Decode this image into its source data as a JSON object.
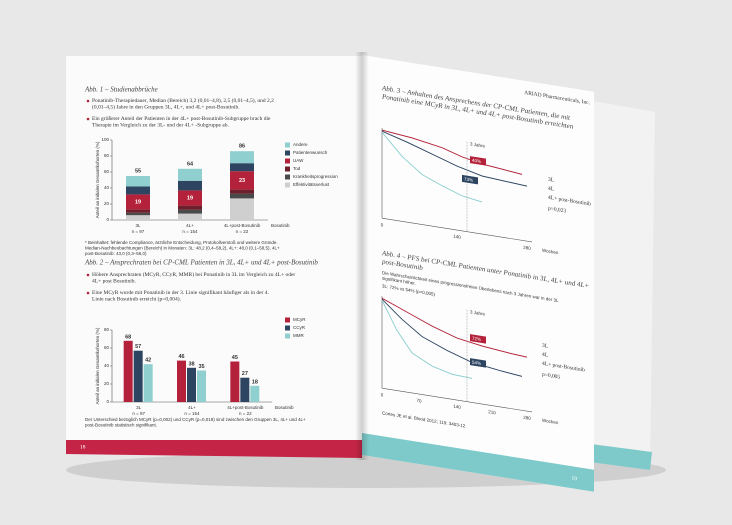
{
  "left_page": {
    "page_number": "18",
    "abb1": {
      "title": "Abb. 1 – Studienabbrüche",
      "bullets": [
        "Ponatinib-Therapiedauer, Median (Bereich) 3,2 (0,01–4,8), 2,5 (0,01–4,5), und 2,2 (0,01–4,5) Jahre in den Gruppen 3L, 4L+, und 4L+ post-Bosutinib.",
        "Ein größerer Anteil der Patienten in der 4L+ post-Bosutinib-Subgruppe brach die Therapie im Vergleich zu der 3L- und der 4L+ -Subgruppe ab."
      ],
      "chart": {
        "type": "stacked_bar",
        "y_label": "Anteil an initialen Gesamtkohorten (%)",
        "x_label": "Bosutinib",
        "categories": [
          [
            "3L",
            "n = 97"
          ],
          [
            "4L+",
            "n = 154"
          ],
          [
            "4L+post-Bosutinib",
            "n = 22"
          ]
        ],
        "totals": [
          55,
          64,
          86
        ],
        "ylim": [
          0,
          100
        ],
        "yticks": [
          0,
          20,
          40,
          60,
          80,
          100
        ],
        "series": [
          {
            "name": "Andere",
            "color": "#8fcfcf",
            "values": [
              13,
              15,
              15
            ]
          },
          {
            "name": "Patientenwunsch",
            "color": "#2d4561",
            "values": [
              10,
              12,
              10
            ]
          },
          {
            "name": "UAW",
            "color": "#b3223a",
            "values": [
              19,
              19,
              23
            ]
          },
          {
            "name": "Tod",
            "color": "#6d1f2c",
            "values": [
              4,
              5,
              5
            ]
          },
          {
            "name": "Krankheitsprogression",
            "color": "#4a4a4a",
            "values": [
              3,
              5,
              6
            ]
          },
          {
            "name": "Effektivitätsverlust",
            "color": "#cfcfcf",
            "values": [
              6,
              8,
              27
            ]
          }
        ]
      },
      "footnote": "* Beinhaltet: fehlende Compliance, ärztliche Entscheidung, Protokollverstoß und weitere Gründe. Median-Nachbeobachtungen (Bereich) in Monaten: 3L: 48,2 (0,4–58,2), 4L+: 48,0 (0,1–58,5), 4L+ post-Bosutinib: 43,0 (0,3–56,0)"
    },
    "abb2": {
      "title": "Abb. 2 – Ansprechraten bei CP-CML Patienten in 3L, 4L+ und 4L+ post-Bosutinib",
      "bullets": [
        "Höhere Ansprechraten (MCyR, CCyR, MMR) bei Ponatinib in 3L im Vergleich zu 4L+ oder 4L+ post Bosutinib.",
        "Eine MCyR wurde mit Ponatinib in der 3. Linie signifikant häufiger als in der 4. Linie nach Bosutinib erreicht (p=0,004)."
      ],
      "chart": {
        "type": "bar",
        "y_label": "Anteil an initialen Gesamtkohorten (%)",
        "x_label": "Bosutinib",
        "categories": [
          [
            "3L",
            "n = 97"
          ],
          [
            "4L+",
            "n = 154"
          ],
          [
            "4L+post-Bosutinib",
            "n = 22"
          ]
        ],
        "ylim": [
          0,
          80
        ],
        "yticks": [
          0,
          20,
          40,
          60,
          80
        ],
        "series": [
          {
            "name": "MCyR",
            "color": "#b3223a",
            "values": [
              68,
              46,
              45
            ]
          },
          {
            "name": "CCyR",
            "color": "#2d4561",
            "values": [
              57,
              38,
              27
            ]
          },
          {
            "name": "MMR",
            "color": "#8fcfcf",
            "values": [
              42,
              35,
              18
            ]
          }
        ]
      },
      "footnote": "Der Unterschied bezüglich MCyR (p=0,002) und CCyR (p=0,019) sind zwischen den Gruppen 3L, 4L+ und 4L+ post-Bosutinib statistisch signifikant."
    }
  },
  "right_page": {
    "header": "ARIAD Pharmaceuticals, Inc.",
    "page_number": "19",
    "abb3": {
      "title": "Abb. 3 – Anhalten des Ansprechens der CP-CML Patienten, die mit Ponatinib eine MCyR in 3L, 4L+ und 4L+ post-Bosutinib erreichten",
      "legend": [
        "3L",
        "4L",
        "4L+ post-Bosutinib"
      ],
      "p_value": "p=0,023",
      "callouts": [
        "3 Jahre",
        "40%",
        "73%"
      ],
      "x_ticks": [
        "0",
        "140",
        "280"
      ],
      "x_label": "Wochen"
    },
    "abb4": {
      "title": "Abb. 4 – PFS bei CP-CML Patienten unter Ponatinib in 3L, 4L+ und 4L+ post-Bosutinib",
      "bullets": [
        "Die Wahrscheinlichkeit eines progressionsfreien Überlebens nach 3 Jahren war in der 3L signifikant höher.",
        "3L: 72% vs 54% (p=0,005)"
      ],
      "legend": [
        "3L",
        "4L",
        "4L+ post-Bosutinib"
      ],
      "p_value": "p=0,005",
      "callouts": [
        "3 Jahre",
        "72%",
        "54%"
      ],
      "x_ticks": [
        "0",
        "70",
        "140",
        "210",
        "280"
      ],
      "x_label": "Wochen"
    },
    "reference": "Cortes JE et al. Blood 2012; 119: 3403-12"
  }
}
